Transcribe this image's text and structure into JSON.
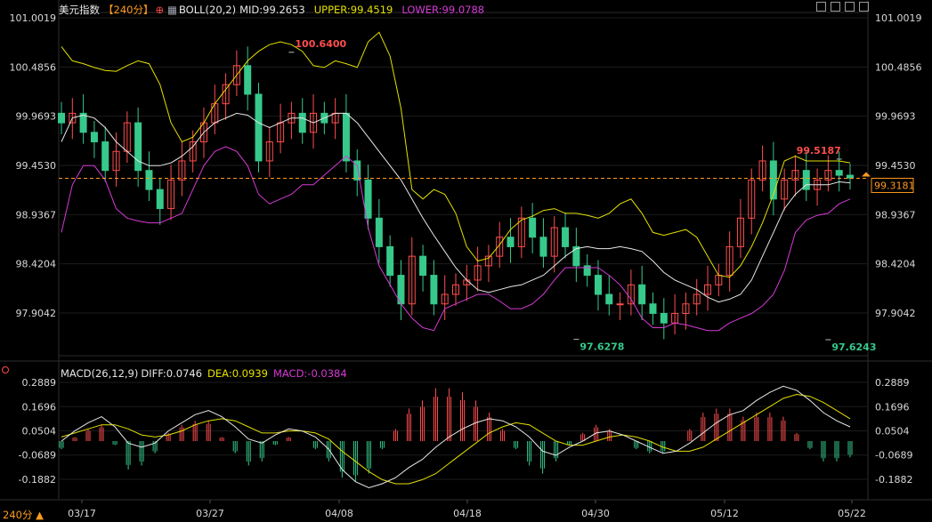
{
  "header": {
    "instrument": "美元指数",
    "period_tag": "【240分】",
    "boll_name": "BOLL(20,2)",
    "mid": "MID:99.2653",
    "upper": "UPPER:99.4519",
    "lower": "LOWER:99.0788"
  },
  "macd_header": {
    "name": "MACD(26,12,9)",
    "diff": "DIFF:0.0746",
    "dea": "DEA:0.0939",
    "macd": "MACD:-0.0384"
  },
  "period_button": "240分 ▲",
  "price_tag": "99.3181",
  "colors": {
    "up": "#ff4d4d",
    "down": "#36c98b",
    "mid": "#e8e8e8",
    "upper": "#e4e000",
    "lower": "#d63ad6",
    "dash": "#ff9a1f",
    "grid": "#1c1c1c"
  },
  "chart_data": [
    {
      "type": "candlestick",
      "y_ticks": [
        "101.0019",
        "100.4856",
        "99.9693",
        "99.4530",
        "98.9367",
        "98.4204",
        "97.9042"
      ],
      "y_tick_values": [
        101.0019,
        100.4856,
        99.9693,
        99.453,
        98.9367,
        98.4204,
        97.9042
      ],
      "ylim": [
        97.4,
        101.0019
      ],
      "x_ticks": [
        "03/17",
        "03/27",
        "04/08",
        "04/18",
        "04/30",
        "05/12",
        "05/22"
      ],
      "annotations": [
        {
          "text": "100.6400",
          "value": 100.64,
          "kind": "high"
        },
        {
          "text": "97.6278",
          "value": 97.6278,
          "kind": "low"
        },
        {
          "text": "97.6243",
          "value": 97.6243,
          "kind": "low"
        },
        {
          "text": "99.5187",
          "value": 99.5187,
          "kind": "high"
        }
      ],
      "current_price": 99.3181,
      "series": [
        {
          "name": "UPPER",
          "values": [
            100.7,
            100.55,
            100.52,
            100.48,
            100.45,
            100.44,
            100.5,
            100.55,
            100.52,
            100.3,
            99.9,
            99.7,
            99.75,
            99.9,
            100.1,
            100.25,
            100.4,
            100.55,
            100.65,
            100.72,
            100.75,
            100.72,
            100.65,
            100.5,
            100.48,
            100.55,
            100.52,
            100.48,
            100.75,
            100.85,
            100.6,
            100.05,
            99.2,
            99.1,
            99.2,
            99.15,
            98.95,
            98.6,
            98.45,
            98.48,
            98.62,
            98.78,
            98.88,
            98.92,
            98.98,
            99.0,
            98.95,
            98.95,
            98.93,
            98.9,
            98.95,
            99.05,
            99.1,
            98.95,
            98.75,
            98.72,
            98.75,
            98.78,
            98.7,
            98.5,
            98.3,
            98.28,
            98.4,
            98.6,
            98.85,
            99.15,
            99.5,
            99.55,
            99.5,
            99.5,
            99.5,
            99.5,
            99.48
          ]
        },
        {
          "name": "MID",
          "values": [
            99.7,
            99.95,
            99.98,
            99.95,
            99.85,
            99.7,
            99.6,
            99.5,
            99.45,
            99.45,
            99.48,
            99.55,
            99.65,
            99.8,
            99.9,
            99.95,
            100.0,
            99.98,
            99.9,
            99.85,
            99.9,
            99.95,
            99.95,
            99.9,
            99.95,
            100.0,
            100.0,
            99.9,
            99.75,
            99.6,
            99.45,
            99.3,
            99.1,
            98.9,
            98.72,
            98.55,
            98.38,
            98.25,
            98.15,
            98.12,
            98.15,
            98.18,
            98.2,
            98.25,
            98.3,
            98.4,
            98.5,
            98.58,
            98.6,
            98.58,
            98.58,
            98.6,
            98.58,
            98.55,
            98.45,
            98.33,
            98.25,
            98.2,
            98.15,
            98.07,
            98.02,
            98.05,
            98.1,
            98.25,
            98.5,
            98.75,
            99.0,
            99.15,
            99.25,
            99.25,
            99.25,
            99.28,
            99.27
          ]
        },
        {
          "name": "LOWER",
          "values": [
            98.75,
            99.25,
            99.45,
            99.45,
            99.3,
            99.0,
            98.9,
            98.87,
            98.85,
            98.85,
            98.9,
            98.95,
            99.2,
            99.45,
            99.6,
            99.65,
            99.6,
            99.45,
            99.15,
            99.05,
            99.1,
            99.15,
            99.25,
            99.25,
            99.35,
            99.45,
            99.55,
            99.45,
            98.8,
            98.4,
            98.2,
            98.0,
            97.85,
            97.75,
            97.72,
            97.95,
            98.0,
            98.05,
            98.1,
            98.1,
            98.03,
            97.95,
            97.95,
            98.0,
            98.1,
            98.25,
            98.38,
            98.38,
            98.38,
            98.38,
            98.3,
            98.2,
            98.05,
            97.85,
            97.75,
            97.75,
            97.8,
            97.78,
            97.75,
            97.72,
            97.72,
            97.8,
            97.85,
            97.9,
            97.98,
            98.1,
            98.35,
            98.75,
            98.88,
            98.93,
            98.95,
            99.05,
            99.1
          ]
        },
        {
          "name": "CLOSE",
          "values": [
            99.9,
            100.0,
            99.8,
            99.7,
            99.4,
            99.6,
            99.9,
            99.4,
            99.2,
            99.0,
            99.3,
            99.5,
            99.7,
            99.9,
            100.1,
            100.3,
            100.5,
            100.2,
            99.5,
            99.7,
            99.9,
            100.0,
            99.8,
            100.0,
            99.9,
            100.0,
            99.5,
            99.3,
            98.9,
            98.6,
            98.3,
            98.0,
            98.5,
            98.3,
            98.0,
            98.1,
            98.2,
            98.25,
            98.4,
            98.5,
            98.7,
            98.6,
            98.9,
            98.7,
            98.5,
            98.8,
            98.6,
            98.4,
            98.3,
            98.1,
            98.0,
            98.0,
            98.2,
            98.0,
            97.9,
            97.8,
            97.9,
            98.0,
            98.1,
            98.2,
            98.3,
            98.6,
            98.9,
            99.3,
            99.5,
            99.1,
            99.3,
            99.4,
            99.2,
            99.3,
            99.4,
            99.35,
            99.32
          ]
        }
      ]
    },
    {
      "type": "bar+line",
      "y_ticks": [
        "0.2889",
        "0.1696",
        "0.0504",
        "-0.0689",
        "-0.1882"
      ],
      "y_tick_values": [
        0.2889,
        0.1696,
        0.0504,
        -0.0689,
        -0.1882
      ],
      "ylim": [
        -0.25,
        0.3
      ],
      "zero_value": 0,
      "series": [
        {
          "name": "DIFF",
          "values": [
            0.0,
            0.05,
            0.09,
            0.12,
            0.07,
            -0.01,
            -0.03,
            -0.01,
            0.05,
            0.09,
            0.13,
            0.15,
            0.12,
            0.07,
            0.01,
            -0.01,
            0.03,
            0.06,
            0.05,
            0.02,
            -0.04,
            -0.14,
            -0.2,
            -0.23,
            -0.21,
            -0.18,
            -0.13,
            -0.09,
            -0.03,
            0.02,
            0.06,
            0.09,
            0.11,
            0.1,
            0.07,
            0.02,
            -0.05,
            -0.07,
            -0.03,
            0.0,
            0.04,
            0.05,
            0.03,
            0.0,
            -0.03,
            -0.06,
            -0.05,
            -0.01,
            0.04,
            0.09,
            0.13,
            0.15,
            0.2,
            0.24,
            0.27,
            0.25,
            0.2,
            0.14,
            0.1,
            0.07
          ]
        },
        {
          "name": "DEA",
          "values": [
            0.02,
            0.04,
            0.06,
            0.08,
            0.08,
            0.06,
            0.03,
            0.02,
            0.03,
            0.05,
            0.08,
            0.1,
            0.11,
            0.1,
            0.07,
            0.04,
            0.04,
            0.05,
            0.05,
            0.04,
            0.01,
            -0.05,
            -0.1,
            -0.15,
            -0.19,
            -0.21,
            -0.21,
            -0.19,
            -0.16,
            -0.11,
            -0.06,
            -0.01,
            0.04,
            0.07,
            0.09,
            0.08,
            0.04,
            0.0,
            -0.02,
            -0.02,
            0.0,
            0.02,
            0.03,
            0.02,
            0.0,
            -0.03,
            -0.05,
            -0.05,
            -0.03,
            0.01,
            0.05,
            0.09,
            0.13,
            0.17,
            0.21,
            0.23,
            0.22,
            0.19,
            0.15,
            0.11
          ]
        },
        {
          "name": "MACD",
          "values": [
            -0.04,
            0.02,
            0.06,
            0.08,
            -0.02,
            -0.14,
            -0.12,
            -0.06,
            0.04,
            0.08,
            0.1,
            0.1,
            0.02,
            -0.06,
            -0.12,
            -0.1,
            -0.02,
            0.02,
            0.0,
            -0.04,
            -0.1,
            -0.18,
            -0.2,
            -0.16,
            -0.04,
            0.06,
            0.16,
            0.2,
            0.26,
            0.26,
            0.24,
            0.2,
            0.14,
            0.06,
            -0.04,
            -0.12,
            -0.16,
            -0.1,
            -0.02,
            0.04,
            0.08,
            0.06,
            0.0,
            -0.04,
            -0.06,
            -0.06,
            0.0,
            0.06,
            0.14,
            0.16,
            0.16,
            0.12,
            0.14,
            0.14,
            0.12,
            0.04,
            -0.04,
            -0.1,
            -0.1,
            -0.08
          ]
        }
      ]
    }
  ]
}
